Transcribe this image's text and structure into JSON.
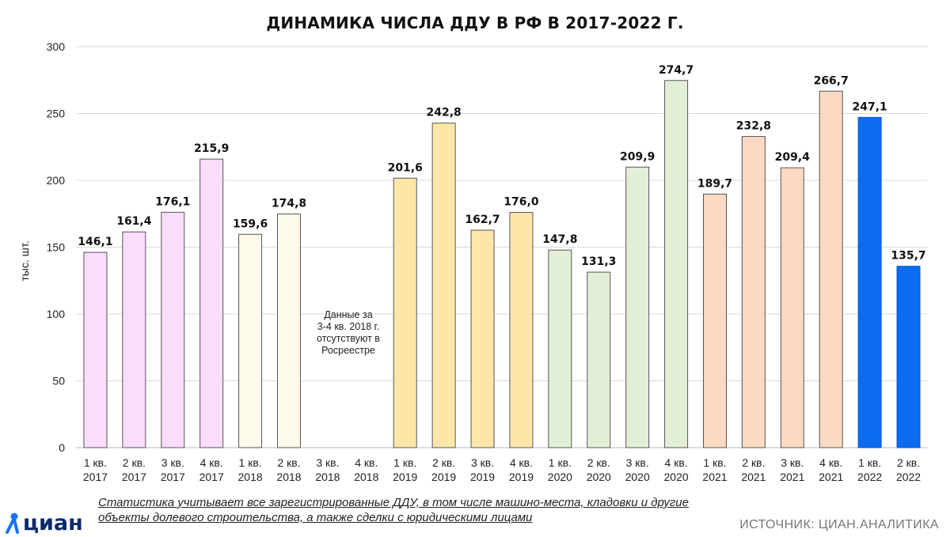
{
  "title": "ДИНАМИКА ЧИСЛА ДДУ В РФ В 2017-2022 Г.",
  "note_lines": [
    "Данные за",
    "3-4 кв. 2018 г.",
    "отсутствуют в",
    "Росреестре"
  ],
  "footnote_lines": [
    "Статистика учитывает все зарегистрированные ДДУ, в том числе машино-места, кладовки и другие",
    "объекты долевого строительства, а также сделки с юридическими лицами"
  ],
  "source": "ИСТОЧНИК: ЦИАН.АНАЛИТИКА",
  "logo_text": "циан",
  "chart_data": {
    "type": "bar",
    "title": "ДИНАМИКА ЧИСЛА ДДУ В РФ В 2017-2022 Г.",
    "ylabel": "тыс. шт.",
    "xlabel": "",
    "ylim": [
      0,
      300
    ],
    "yticks": [
      0,
      50,
      100,
      150,
      200,
      250,
      300
    ],
    "grid": true,
    "categories": [
      "1 кв. 2017",
      "2 кв. 2017",
      "3 кв. 2017",
      "4 кв. 2017",
      "1 кв. 2018",
      "2 кв. 2018",
      "3 кв. 2018",
      "4 кв. 2018",
      "1 кв. 2019",
      "2 кв. 2019",
      "3 кв. 2019",
      "4 кв. 2019",
      "1 кв. 2020",
      "2 кв. 2020",
      "3 кв. 2020",
      "4 кв. 2020",
      "1 кв. 2021",
      "2 кв. 2021",
      "3 кв. 2021",
      "4 кв. 2021",
      "1 кв. 2022",
      "2 кв. 2022"
    ],
    "values": [
      146.1,
      161.4,
      176.1,
      215.9,
      159.6,
      174.8,
      null,
      null,
      201.6,
      242.8,
      162.7,
      176.0,
      147.8,
      131.3,
      209.9,
      274.7,
      189.7,
      232.8,
      209.4,
      266.7,
      247.1,
      135.7
    ],
    "value_labels": [
      "146,1",
      "161,4",
      "176,1",
      "215,9",
      "159,6",
      "174,8",
      "",
      "",
      "201,6",
      "242,8",
      "162,7",
      "176,0",
      "147,8",
      "131,3",
      "209,9",
      "274,7",
      "189,7",
      "232,8",
      "209,4",
      "266,7",
      "247,1",
      "135,7"
    ],
    "year_colors": {
      "2017": "#fbdcfb",
      "2018": "#fefaea",
      "2019": "#fde7a8",
      "2020": "#e2efd6",
      "2021": "#fcd9c2",
      "2022": "#0b6cf2"
    }
  }
}
